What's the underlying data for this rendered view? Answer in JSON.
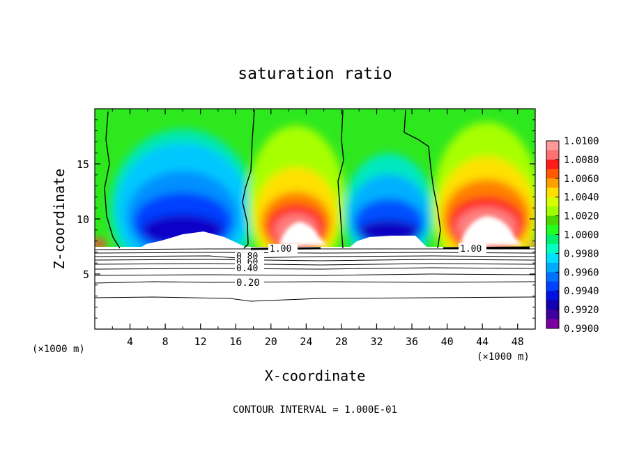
{
  "chart_data": {
    "type": "heatmap",
    "title": "saturation ratio",
    "xlabel": "X-coordinate",
    "ylabel": "Z-coordinate",
    "x_unit": "(×1000 m)",
    "xlim": [
      0,
      50
    ],
    "ylim": [
      0,
      20
    ],
    "x_ticks": [
      4,
      8,
      12,
      16,
      20,
      24,
      28,
      32,
      36,
      40,
      44,
      48
    ],
    "y_ticks": [
      5,
      10,
      15
    ],
    "colorbar": {
      "min": 0.99,
      "max": 1.01,
      "labels": [
        "1.0100",
        "1.0080",
        "1.0060",
        "1.0040",
        "1.0020",
        "1.0000",
        "0.9980",
        "0.9960",
        "0.9940",
        "0.9920",
        "0.9900"
      ],
      "colors": [
        "#ff9999",
        "#ff7070",
        "#ff1a1a",
        "#ff5a00",
        "#ffa000",
        "#ffdf00",
        "#d8ff00",
        "#a0ff00",
        "#4ad800",
        "#20ff20",
        "#00f070",
        "#00ffc0",
        "#00e0ff",
        "#00aaff",
        "#0070ff",
        "#0040ff",
        "#0010e0",
        "#1000b0",
        "#4000a0",
        "#7a00a0"
      ]
    },
    "contour_labels": [
      "1.00",
      "1.00",
      "0.80",
      "0.60",
      "0.40",
      "0.20"
    ],
    "contour_levels": [
      0.1,
      0.2,
      0.3,
      0.4,
      0.5,
      0.6,
      0.7,
      0.8,
      0.9,
      1.0
    ],
    "cloud_boundaries_x": [
      1.4,
      17.8,
      28.2,
      38.8
    ],
    "cloud_base_z": 7.2,
    "footer": "CONTOUR INTERVAL = 1.000E-01"
  }
}
